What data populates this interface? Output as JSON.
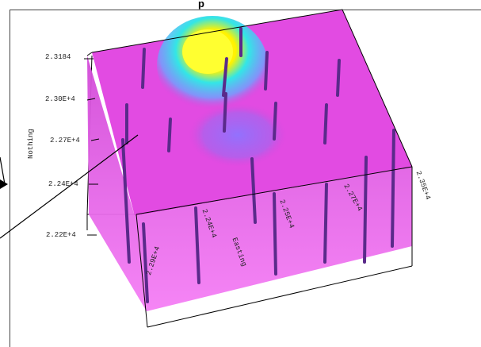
{
  "viewer": {
    "top_label": "p"
  },
  "axis": {
    "y_ticks": [
      "2.3184",
      "2.30E+4",
      "2.27E+4",
      "2.24E+4",
      "2.22E+4"
    ],
    "y_label": "Nothing",
    "right_tick": "2.35E+4",
    "x_ticks": [
      "2.24E+4",
      "2.25E+4",
      "2.27E+4",
      "2.29E+4"
    ],
    "x_label": "Easting"
  },
  "colors": {
    "volume_main": "#e24be2",
    "volume_light": "#f07af0",
    "hot_core": "#ffff2a",
    "mid": "#33e0e6",
    "low": "#5aa0ff",
    "blob": "#9b6cff",
    "boreholes": "#5a2a8a",
    "edges": "#000000"
  },
  "icons": [
    "pointer-arrow-icon"
  ]
}
